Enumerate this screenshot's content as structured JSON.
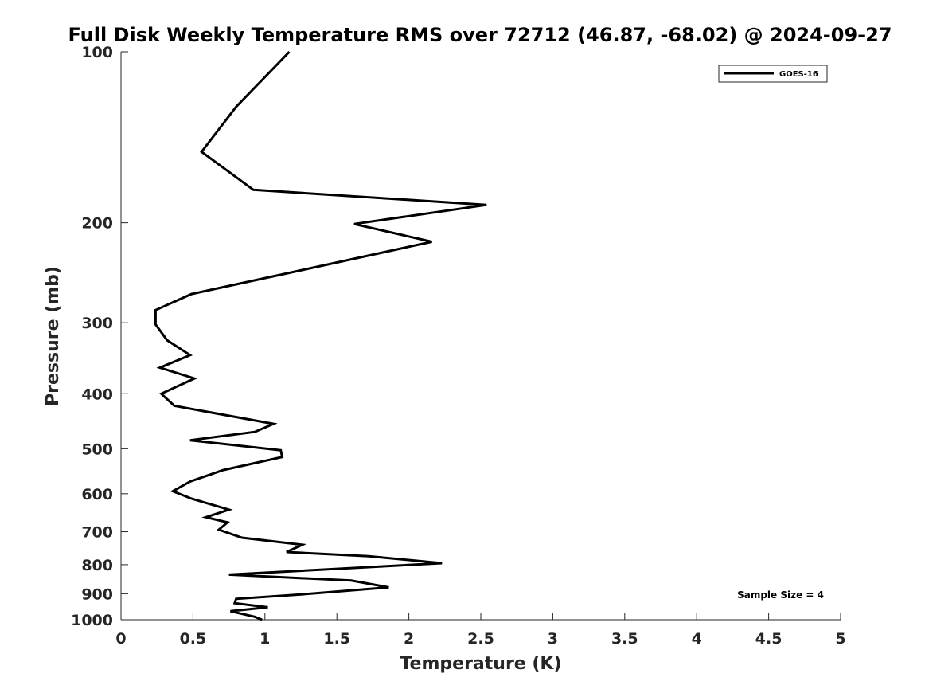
{
  "chart_data": {
    "type": "line",
    "title": "Full Disk Weekly Temperature RMS over 72712 (46.87, -68.02) @ 2024-09-27",
    "xlabel": "Temperature (K)",
    "ylabel": "Pressure (mb)",
    "xlim": [
      0,
      5
    ],
    "ylim": [
      100,
      1000
    ],
    "y_scale": "log",
    "y_reversed": true,
    "x_ticks": [
      0,
      0.5,
      1,
      1.5,
      2,
      2.5,
      3,
      3.5,
      4,
      4.5,
      5
    ],
    "x_tick_labels": [
      "0",
      "0.5",
      "1",
      "1.5",
      "2",
      "2.5",
      "3",
      "3.5",
      "4",
      "4.5",
      "5"
    ],
    "y_ticks": [
      100,
      200,
      300,
      400,
      500,
      600,
      700,
      800,
      900,
      1000
    ],
    "y_tick_labels": [
      "100",
      "200",
      "300",
      "400",
      "500",
      "600",
      "700",
      "800",
      "900",
      "1000"
    ],
    "grid": false,
    "legend_position": "top-right",
    "annotation": "Sample Size = 4",
    "series": [
      {
        "name": "GOES-16",
        "color": "#000000",
        "points": [
          [
            1.17,
            100
          ],
          [
            0.8,
            125
          ],
          [
            0.56,
            150
          ],
          [
            0.92,
            175
          ],
          [
            2.54,
            186
          ],
          [
            1.62,
            201
          ],
          [
            2.16,
            216
          ],
          [
            1.17,
            245
          ],
          [
            0.49,
            267
          ],
          [
            0.24,
            285
          ],
          [
            0.24,
            302
          ],
          [
            0.32,
            322
          ],
          [
            0.48,
            342
          ],
          [
            0.27,
            360
          ],
          [
            0.51,
            376
          ],
          [
            0.28,
            400
          ],
          [
            0.37,
            420
          ],
          [
            1.06,
            452
          ],
          [
            0.93,
            467
          ],
          [
            0.48,
            483
          ],
          [
            1.11,
            503
          ],
          [
            1.12,
            517
          ],
          [
            0.71,
            545
          ],
          [
            0.48,
            571
          ],
          [
            0.36,
            594
          ],
          [
            0.49,
            612
          ],
          [
            0.75,
            640
          ],
          [
            0.59,
            660
          ],
          [
            0.74,
            674
          ],
          [
            0.68,
            694
          ],
          [
            0.84,
            717
          ],
          [
            1.26,
            738
          ],
          [
            1.15,
            760
          ],
          [
            1.72,
            773
          ],
          [
            2.23,
            795
          ],
          [
            1.72,
            808
          ],
          [
            0.75,
            833
          ],
          [
            1.6,
            853
          ],
          [
            1.86,
            877
          ],
          [
            1.24,
            903
          ],
          [
            0.8,
            919
          ],
          [
            0.79,
            935
          ],
          [
            1.02,
            951
          ],
          [
            0.76,
            966
          ],
          [
            0.93,
            988
          ],
          [
            0.98,
            1000
          ]
        ]
      }
    ]
  }
}
